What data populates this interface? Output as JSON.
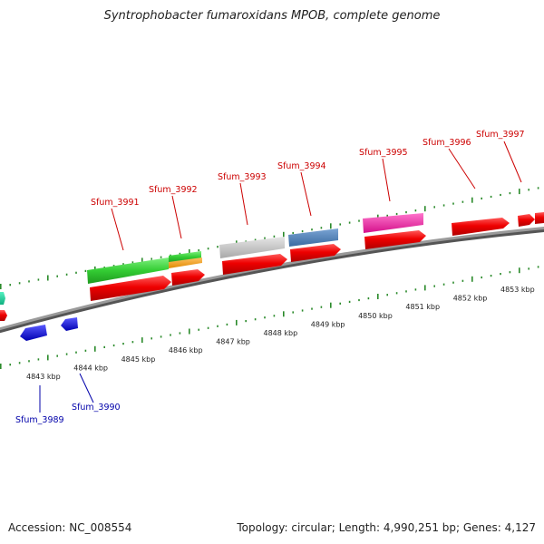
{
  "title": "Syntrophobacter fumaroxidans MPOB, complete genome",
  "footer": {
    "accession": "Accession: NC_008554",
    "summary": "Topology: circular; Length: 4,990,251 bp; Genes: 4,127"
  },
  "ticks": [
    {
      "label": "4843 kbp"
    },
    {
      "label": "4844 kbp"
    },
    {
      "label": "4845 kbp"
    },
    {
      "label": "4846 kbp"
    },
    {
      "label": "4847 kbp"
    },
    {
      "label": "4848 kbp"
    },
    {
      "label": "4849 kbp"
    },
    {
      "label": "4850 kbp"
    },
    {
      "label": "4851 kbp"
    },
    {
      "label": "4852 kbp"
    },
    {
      "label": "4853 kbp"
    }
  ],
  "gene_labels": [
    {
      "text": "Sfum_3989",
      "strand": "reverse"
    },
    {
      "text": "Sfum_3990",
      "strand": "reverse"
    },
    {
      "text": "Sfum_3991",
      "strand": "forward"
    },
    {
      "text": "Sfum_3992",
      "strand": "forward"
    },
    {
      "text": "Sfum_3993",
      "strand": "forward"
    },
    {
      "text": "Sfum_3994",
      "strand": "forward"
    },
    {
      "text": "Sfum_3995",
      "strand": "forward"
    },
    {
      "text": "Sfum_3996",
      "strand": "forward"
    },
    {
      "text": "Sfum_3997",
      "strand": "forward"
    }
  ],
  "colors": {
    "forward_label": "#cc0000",
    "reverse_label": "#0000aa",
    "cds": "#ee0000",
    "reverse_cds": "#1a1add",
    "tick": "#2a8a2a",
    "backbone": "#888888"
  }
}
